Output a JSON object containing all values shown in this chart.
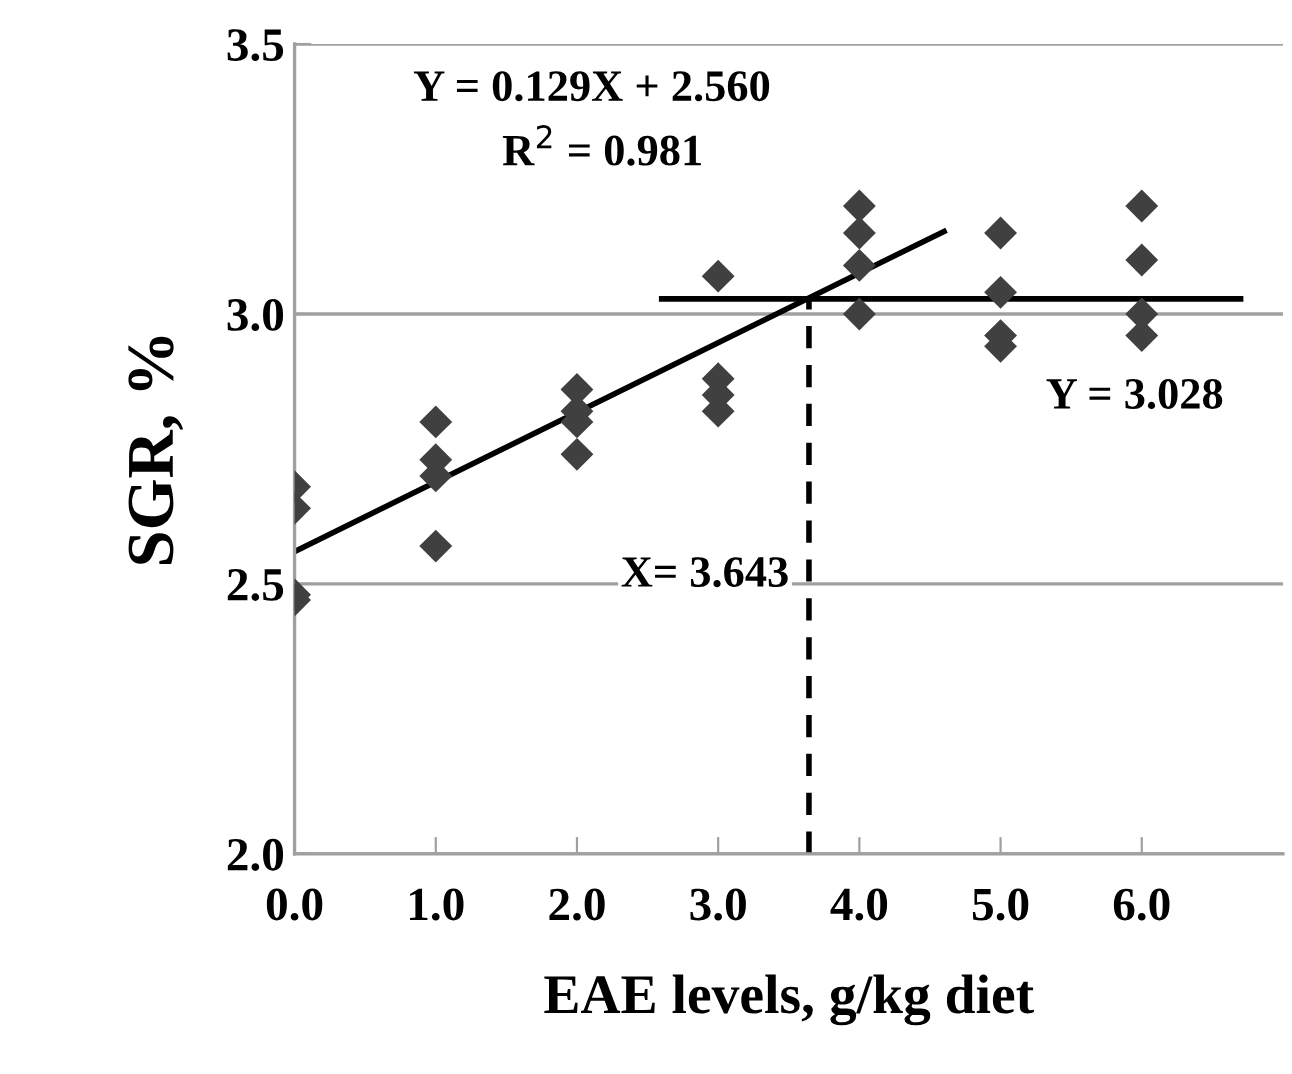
{
  "chart_data": {
    "type": "scatter",
    "xlabel": "EAE levels, g/kg diet",
    "ylabel": "SGR, %",
    "xlim": [
      0,
      7
    ],
    "xticks": [
      {
        "value": 0,
        "label": "0.0"
      },
      {
        "value": 1,
        "label": "1.0"
      },
      {
        "value": 2,
        "label": "2.0"
      },
      {
        "value": 3,
        "label": "3.0"
      },
      {
        "value": 4,
        "label": "4.0"
      },
      {
        "value": 5,
        "label": "5.0"
      },
      {
        "value": 6,
        "label": "6.0"
      }
    ],
    "ylim": [
      2.0,
      3.5
    ],
    "yticks": [
      {
        "value": 2.0,
        "label": "2.0"
      },
      {
        "value": 2.5,
        "label": "2.5"
      },
      {
        "value": 3.0,
        "label": "3.0"
      },
      {
        "value": 3.5,
        "label": "3.5"
      }
    ],
    "grid": "y",
    "marker": "diamond",
    "series": [
      {
        "color": "#404040",
        "x": [
          0,
          0,
          0,
          0,
          1,
          1,
          1,
          1,
          2,
          2,
          2,
          2,
          3,
          3,
          3,
          3,
          4,
          4,
          4,
          4,
          5,
          5,
          5,
          5,
          6,
          6,
          6,
          6
        ],
        "values": [
          2.68,
          2.64,
          2.48,
          2.47,
          2.8,
          2.73,
          2.7,
          2.57,
          2.86,
          2.82,
          2.8,
          2.74,
          3.07,
          2.88,
          2.85,
          2.82,
          3.2,
          3.15,
          3.09,
          3.0,
          3.15,
          3.04,
          2.96,
          2.94,
          3.2,
          3.1,
          3.0,
          2.96
        ]
      },
      {
        "type": "line",
        "color": "#000000",
        "marker": "none",
        "line_style": "solid",
        "x": [
          0,
          4.6
        ],
        "values": [
          2.56,
          3.153
        ]
      },
      {
        "type": "line",
        "color": "#000000",
        "marker": "none",
        "line_style": "solid",
        "x": [
          2.6,
          6.7
        ],
        "values": [
          3.028,
          3.028
        ]
      },
      {
        "type": "line",
        "color": "#000000",
        "marker": "none",
        "line_style": "dashed",
        "x": [
          3.643,
          3.643
        ],
        "values": [
          2.0,
          3.028
        ]
      }
    ],
    "annotations": [
      "Y = 0.129X + 2.560",
      "R$^{2}$ = 0.981",
      "X= 3.643",
      "Y = 3.028"
    ]
  }
}
